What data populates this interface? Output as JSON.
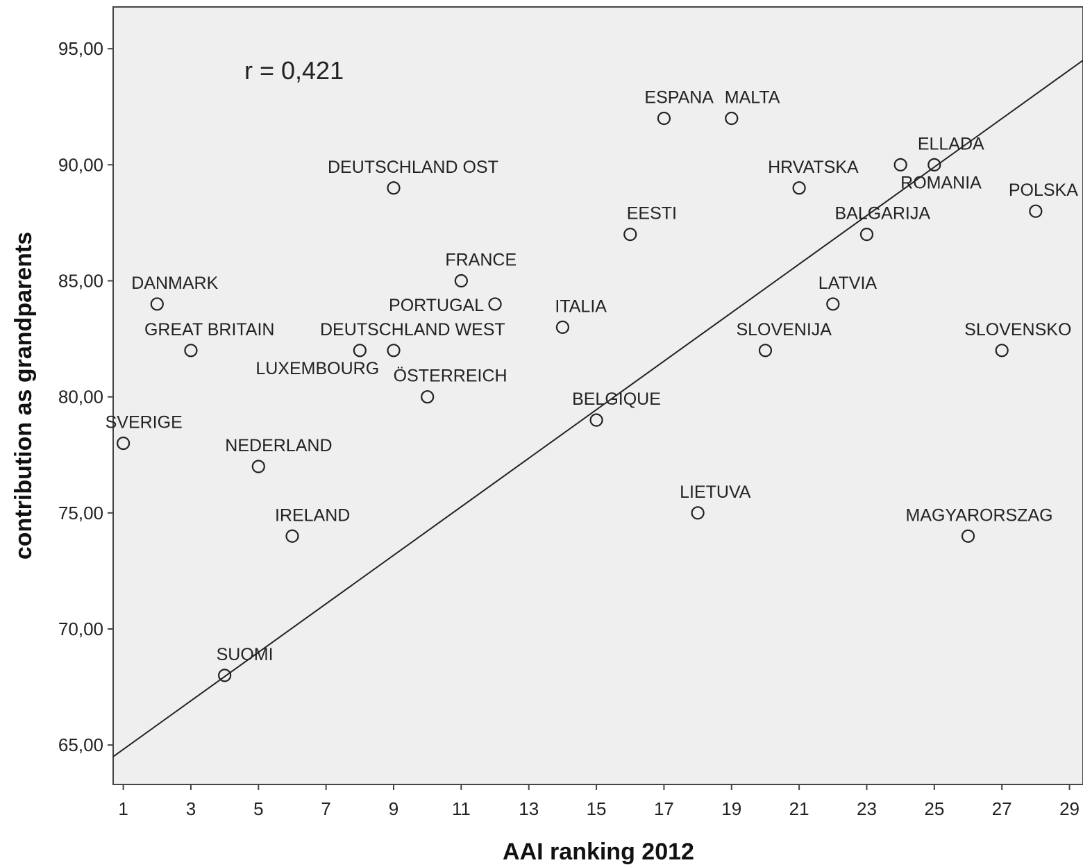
{
  "chart_data": {
    "type": "scatter",
    "title": "",
    "xlabel": "AAI ranking 2012",
    "ylabel": "contribution as grandparents",
    "xlim": [
      0.7,
      29.4
    ],
    "ylim": [
      63.3,
      96.8
    ],
    "x_ticks": [
      1,
      3,
      5,
      7,
      9,
      11,
      13,
      15,
      17,
      19,
      21,
      23,
      25,
      27,
      29
    ],
    "y_ticks": [
      {
        "value": 65,
        "label": "65,00"
      },
      {
        "value": 70,
        "label": "70,00"
      },
      {
        "value": 75,
        "label": "75,00"
      },
      {
        "value": 80,
        "label": "80,00"
      },
      {
        "value": 85,
        "label": "85,00"
      },
      {
        "value": 90,
        "label": "90,00"
      },
      {
        "value": 95,
        "label": "95,00"
      }
    ],
    "annotation": "r = 0,421",
    "grid": false,
    "colors": {
      "plot_bg": "#efefef",
      "marker": "#222222",
      "fit_line": "#222222",
      "frame": "#444444"
    },
    "points": [
      {
        "label": "SVERIGE",
        "x": 1,
        "y": 78
      },
      {
        "label": "DANMARK",
        "x": 2,
        "y": 84
      },
      {
        "label": "GREAT BRITAIN",
        "x": 3,
        "y": 82
      },
      {
        "label": "SUOMI",
        "x": 4,
        "y": 68
      },
      {
        "label": "NEDERLAND",
        "x": 5,
        "y": 77
      },
      {
        "label": "IRELAND",
        "x": 6,
        "y": 74
      },
      {
        "label": "LUXEMBOURG",
        "x": 8,
        "y": 82
      },
      {
        "label": "DEUTSCHLAND WEST",
        "x": 9,
        "y": 82
      },
      {
        "label": "DEUTSCHLAND OST",
        "x": 9,
        "y": 89
      },
      {
        "label": "ÖSTERREICH",
        "x": 10,
        "y": 80
      },
      {
        "label": "FRANCE",
        "x": 11,
        "y": 85
      },
      {
        "label": "PORTUGAL",
        "x": 12,
        "y": 84
      },
      {
        "label": "ITALIA",
        "x": 14,
        "y": 83
      },
      {
        "label": "BELGIQUE",
        "x": 15,
        "y": 79
      },
      {
        "label": "EESTI",
        "x": 16,
        "y": 87
      },
      {
        "label": "ESPANA",
        "x": 17,
        "y": 92
      },
      {
        "label": "LIETUVA",
        "x": 18,
        "y": 75
      },
      {
        "label": "MALTA",
        "x": 19,
        "y": 92
      },
      {
        "label": "SLOVENIJA",
        "x": 20,
        "y": 82
      },
      {
        "label": "HRVATSKA",
        "x": 21,
        "y": 89
      },
      {
        "label": "LATVIA",
        "x": 22,
        "y": 84
      },
      {
        "label": "BALGARIJA",
        "x": 23,
        "y": 87
      },
      {
        "label": "ROMANIA",
        "x": 24,
        "y": 90
      },
      {
        "label": "ELLADA",
        "x": 25,
        "y": 90
      },
      {
        "label": "MAGYARORSZAG",
        "x": 26,
        "y": 74
      },
      {
        "label": "SLOVENSKO",
        "x": 27,
        "y": 82
      },
      {
        "label": "POLSKA",
        "x": 28,
        "y": 88
      }
    ],
    "fit_line": {
      "x1": 0.7,
      "y1": 64.5,
      "x2": 29.4,
      "y2": 94.5
    }
  }
}
